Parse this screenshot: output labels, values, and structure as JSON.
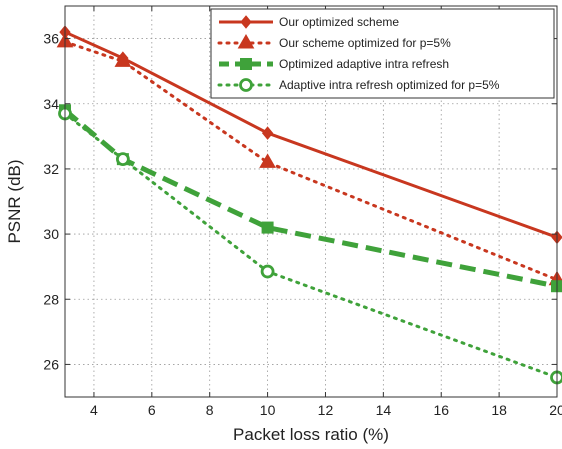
{
  "chart_data": {
    "type": "line",
    "xlabel": "Packet loss ratio (%)",
    "ylabel": "PSNR (dB)",
    "xlim": [
      3,
      20
    ],
    "ylim": [
      25,
      37
    ],
    "xticks": [
      4,
      6,
      8,
      10,
      12,
      14,
      16,
      18,
      20
    ],
    "yticks": [
      26,
      28,
      30,
      32,
      34,
      36
    ],
    "grid": true,
    "legend_position": "top-right",
    "series": [
      {
        "name": "Our optimized scheme",
        "color": "#c8371f",
        "line_style": "solid",
        "marker": "diamond",
        "x": [
          3,
          5,
          10,
          20
        ],
        "y": [
          36.2,
          35.4,
          33.1,
          29.9
        ]
      },
      {
        "name": "Our scheme optimized for p=5%",
        "color": "#c8371f",
        "line_style": "dotted",
        "marker": "triangle",
        "x": [
          3,
          5,
          10,
          20
        ],
        "y": [
          35.9,
          35.3,
          32.2,
          28.6
        ]
      },
      {
        "name": "Optimized adaptive intra refresh",
        "color": "#3fa23a",
        "line_style": "dashed",
        "marker": "square",
        "x": [
          3,
          5,
          10,
          20
        ],
        "y": [
          33.8,
          32.3,
          30.2,
          28.4
        ]
      },
      {
        "name": "Adaptive intra refresh optimized for p=5%",
        "color": "#3fa23a",
        "line_style": "dotted",
        "marker": "circle",
        "x": [
          3,
          5,
          10,
          20
        ],
        "y": [
          33.7,
          32.3,
          28.85,
          25.6
        ]
      }
    ]
  }
}
